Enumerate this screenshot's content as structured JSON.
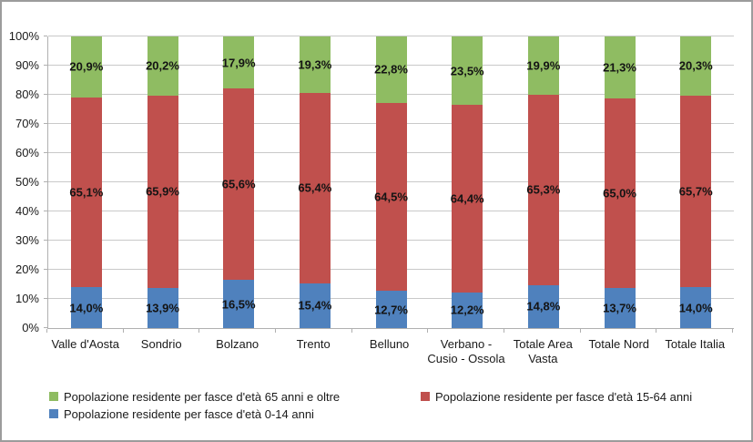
{
  "chart_data": {
    "type": "bar",
    "variant": "stacked-100-percent",
    "title": "",
    "grid": "horizontal",
    "categories": [
      {
        "label": "Valle d'Aosta",
        "lines": [
          "Valle d'Aosta"
        ]
      },
      {
        "label": "Sondrio",
        "lines": [
          "Sondrio"
        ]
      },
      {
        "label": "Bolzano",
        "lines": [
          "Bolzano"
        ]
      },
      {
        "label": "Trento",
        "lines": [
          "Trento"
        ]
      },
      {
        "label": "Belluno",
        "lines": [
          "Belluno"
        ]
      },
      {
        "label": "Verbano - Cusio - Ossola",
        "lines": [
          "Verbano -",
          "Cusio - Ossola"
        ]
      },
      {
        "label": "Totale Area Vasta",
        "lines": [
          "Totale Area",
          "Vasta"
        ]
      },
      {
        "label": "Totale Nord",
        "lines": [
          "Totale Nord"
        ]
      },
      {
        "label": "Totale Italia",
        "lines": [
          "Totale Italia"
        ]
      }
    ],
    "series": [
      {
        "name": "Popolazione residente per fasce d'età 0-14 anni",
        "color": "#4F81BD",
        "values": [
          14.0,
          13.9,
          16.5,
          15.4,
          12.7,
          12.2,
          14.8,
          13.7,
          14.0
        ],
        "labels": [
          "14,0%",
          "13,9%",
          "16,5%",
          "15,4%",
          "12,7%",
          "12,2%",
          "14,8%",
          "13,7%",
          "14,0%"
        ]
      },
      {
        "name": "Popolazione residente per fasce d'età 15-64 anni",
        "color": "#C0504D",
        "values": [
          65.1,
          65.9,
          65.6,
          65.4,
          64.5,
          64.4,
          65.3,
          65.0,
          65.7
        ],
        "labels": [
          "65,1%",
          "65,9%",
          "65,6%",
          "65,4%",
          "64,5%",
          "64,4%",
          "65,3%",
          "65,0%",
          "65,7%"
        ]
      },
      {
        "name": "Popolazione residente per fasce d'età 65 anni e oltre",
        "color": "#8FBC62",
        "values": [
          20.9,
          20.2,
          17.9,
          19.3,
          22.8,
          23.5,
          19.9,
          21.3,
          20.3
        ],
        "labels": [
          "20,9%",
          "20,2%",
          "17,9%",
          "19,3%",
          "22,8%",
          "23,5%",
          "19,9%",
          "21,3%",
          "20,3%"
        ]
      }
    ],
    "y_axis": {
      "min": 0,
      "max": 100,
      "ticks": [
        {
          "value": 0,
          "label": "0%"
        },
        {
          "value": 10,
          "label": "10%"
        },
        {
          "value": 20,
          "label": "20%"
        },
        {
          "value": 30,
          "label": "30%"
        },
        {
          "value": 40,
          "label": "40%"
        },
        {
          "value": 50,
          "label": "50%"
        },
        {
          "value": 60,
          "label": "60%"
        },
        {
          "value": 70,
          "label": "70%"
        },
        {
          "value": 80,
          "label": "80%"
        },
        {
          "value": 90,
          "label": "90%"
        },
        {
          "value": 100,
          "label": "100%"
        }
      ]
    },
    "legend": {
      "position": "bottom",
      "columns": [
        [
          2,
          0
        ],
        [
          1
        ]
      ]
    }
  }
}
